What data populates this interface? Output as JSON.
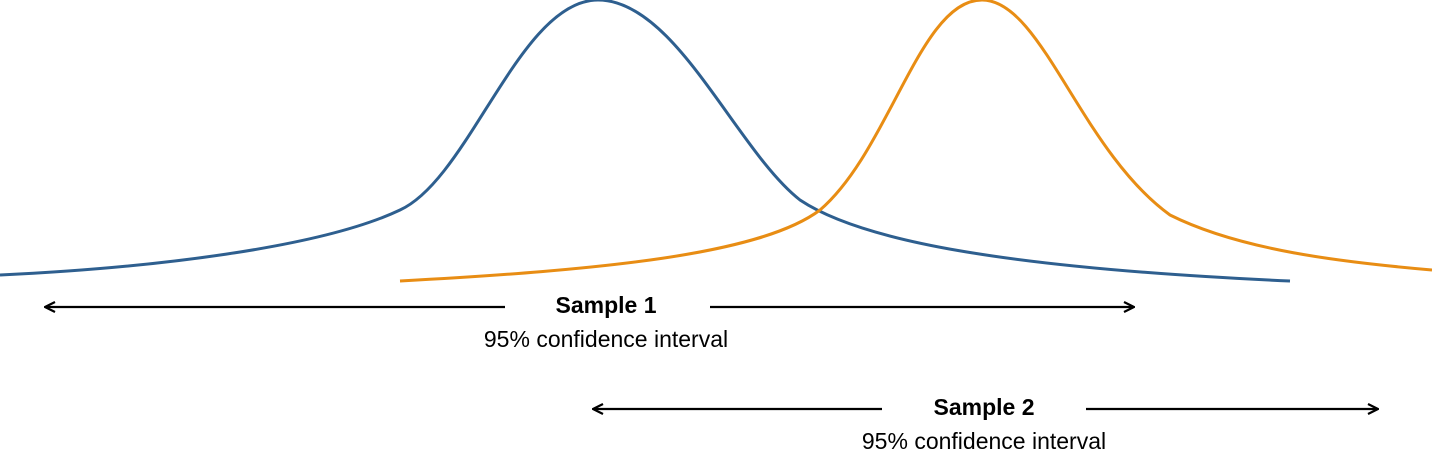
{
  "samples": [
    {
      "title": "Sample 1",
      "subtitle": "95% confidence interval",
      "color": "#2e5f8f"
    },
    {
      "title": "Sample 2",
      "subtitle": "95% confidence interval",
      "color": "#e88d14"
    }
  ],
  "arrow_color": "#000000"
}
